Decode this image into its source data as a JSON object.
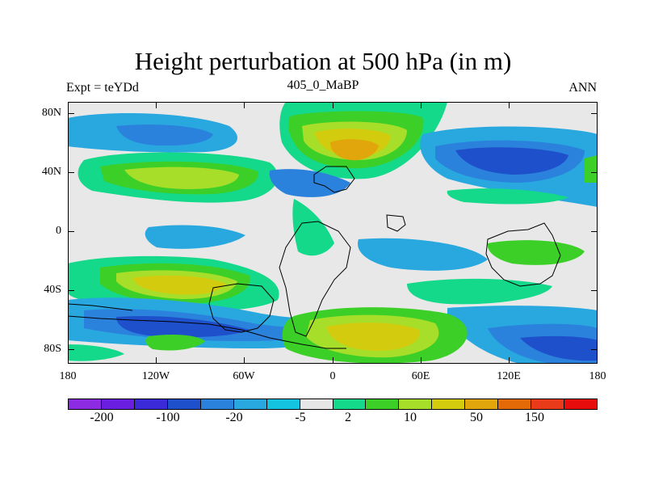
{
  "title": "Height perturbation at 500 hPa (in m)",
  "subtitle": {
    "left": "Expt = teYDd",
    "center": "405_0_MaBP",
    "right": "ANN"
  },
  "map": {
    "lat_labels": [
      "80N",
      "40N",
      "0",
      "40S",
      "80S"
    ],
    "lon_labels": [
      "180",
      "120W",
      "60W",
      "0",
      "60E",
      "120E",
      "180"
    ]
  },
  "colorbar": {
    "colors": [
      "#8c2be2",
      "#6a1fe0",
      "#3a2ad8",
      "#1e50cc",
      "#2b82dc",
      "#28a8df",
      "#13c3e0",
      "#e6e6e6",
      "#14d88a",
      "#3ccf28",
      "#a6de2a",
      "#d3cc0e",
      "#e0a60c",
      "#e46a08",
      "#e93a1a",
      "#e80c0c"
    ],
    "tick_labels": [
      "-200",
      "-100",
      "-20",
      "-5",
      "2",
      "10",
      "50",
      "150"
    ]
  }
}
